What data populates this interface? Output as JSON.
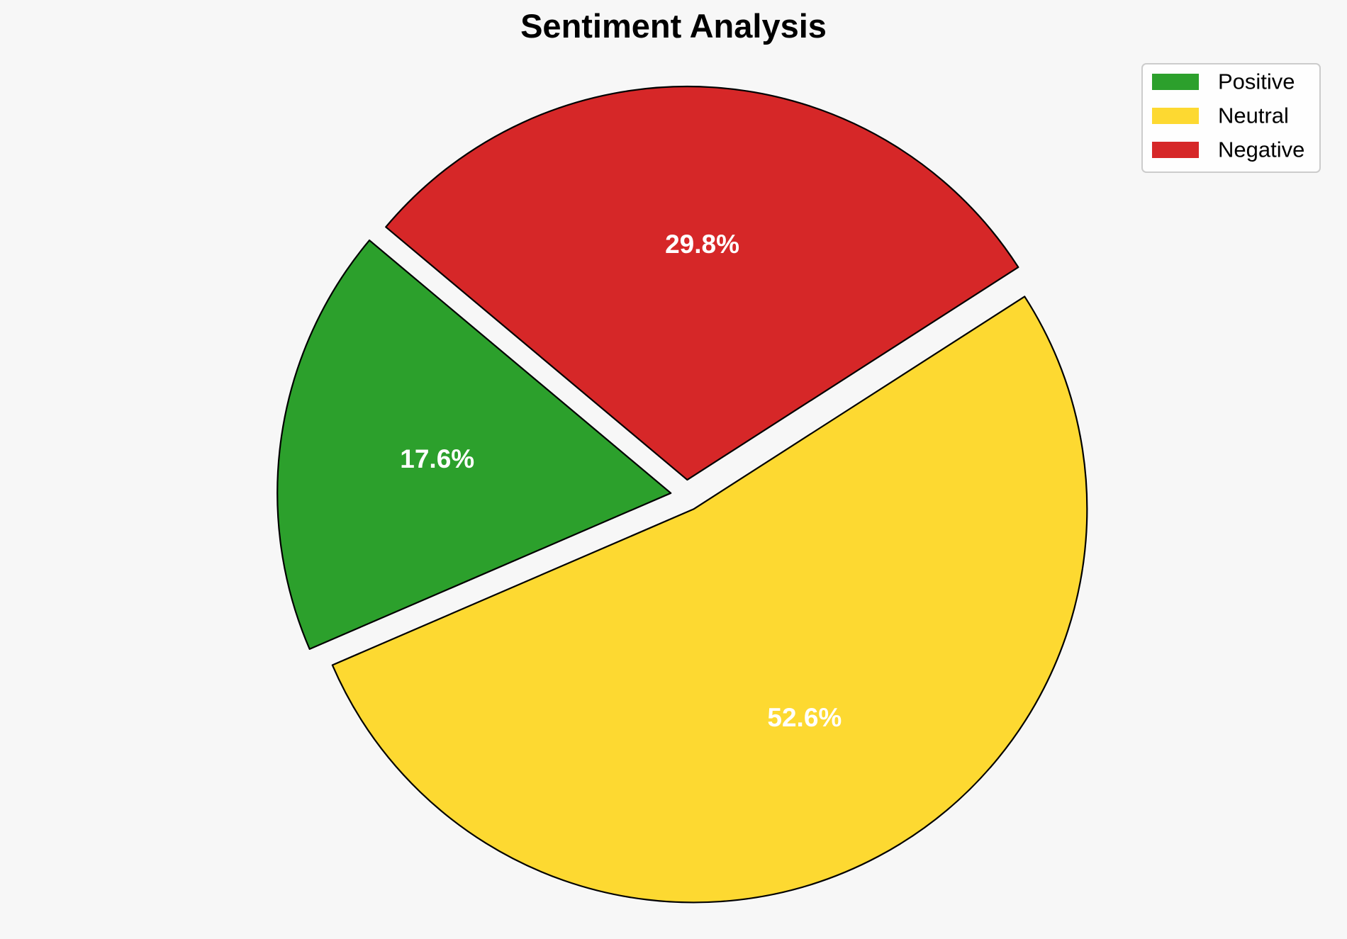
{
  "chart_data": {
    "type": "pie",
    "title": "Sentiment Analysis",
    "categories": [
      "Positive",
      "Neutral",
      "Negative"
    ],
    "values": [
      17.6,
      52.6,
      29.8
    ],
    "labels": [
      "17.6%",
      "52.6%",
      "29.8%"
    ],
    "colors": [
      "#2ca02c",
      "#fdd931",
      "#d62728"
    ],
    "exploded": true,
    "start_angle_degrees": 140,
    "legend_position": "top-right",
    "slice_edge_color": "#000000"
  }
}
